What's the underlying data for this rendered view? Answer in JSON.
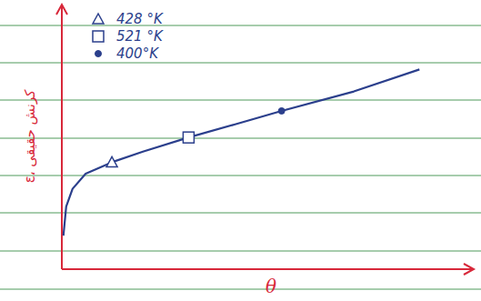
{
  "chart_data": {
    "type": "line",
    "x_label": "θ",
    "y_label": "ε، کرنش حقیقی",
    "xlim": [
      0,
      100
    ],
    "ylim": [
      0,
      100
    ],
    "tick_labels": false,
    "grid": false,
    "legend": "top-left",
    "x": [
      0.4,
      1.1,
      2.7,
      6,
      12.6,
      20.4,
      31.9,
      43.6,
      55.3,
      73.5,
      90
    ],
    "series": [
      {
        "type": "line",
        "color": "#2b3f8c",
        "line_style": "solid",
        "values": [
          13.3,
          24.8,
          31.8,
          37.8,
          42.3,
          46.5,
          52.1,
          57.3,
          62.6,
          70.3,
          79
        ]
      },
      {
        "type": "scatter",
        "name": "428 °K",
        "marker": "triangle",
        "color": "#2b3f8c",
        "x": [
          12.6
        ],
        "values": [
          42.3
        ]
      },
      {
        "type": "scatter",
        "name": "521 °K",
        "marker": "square",
        "color": "#2b3f8c",
        "x": [
          31.9
        ],
        "values": [
          52.1
        ]
      },
      {
        "type": "scatter",
        "name": "400°K",
        "marker": "circle",
        "color": "#2b3f8c",
        "x": [
          55.3
        ],
        "values": [
          62.6
        ]
      }
    ]
  }
}
